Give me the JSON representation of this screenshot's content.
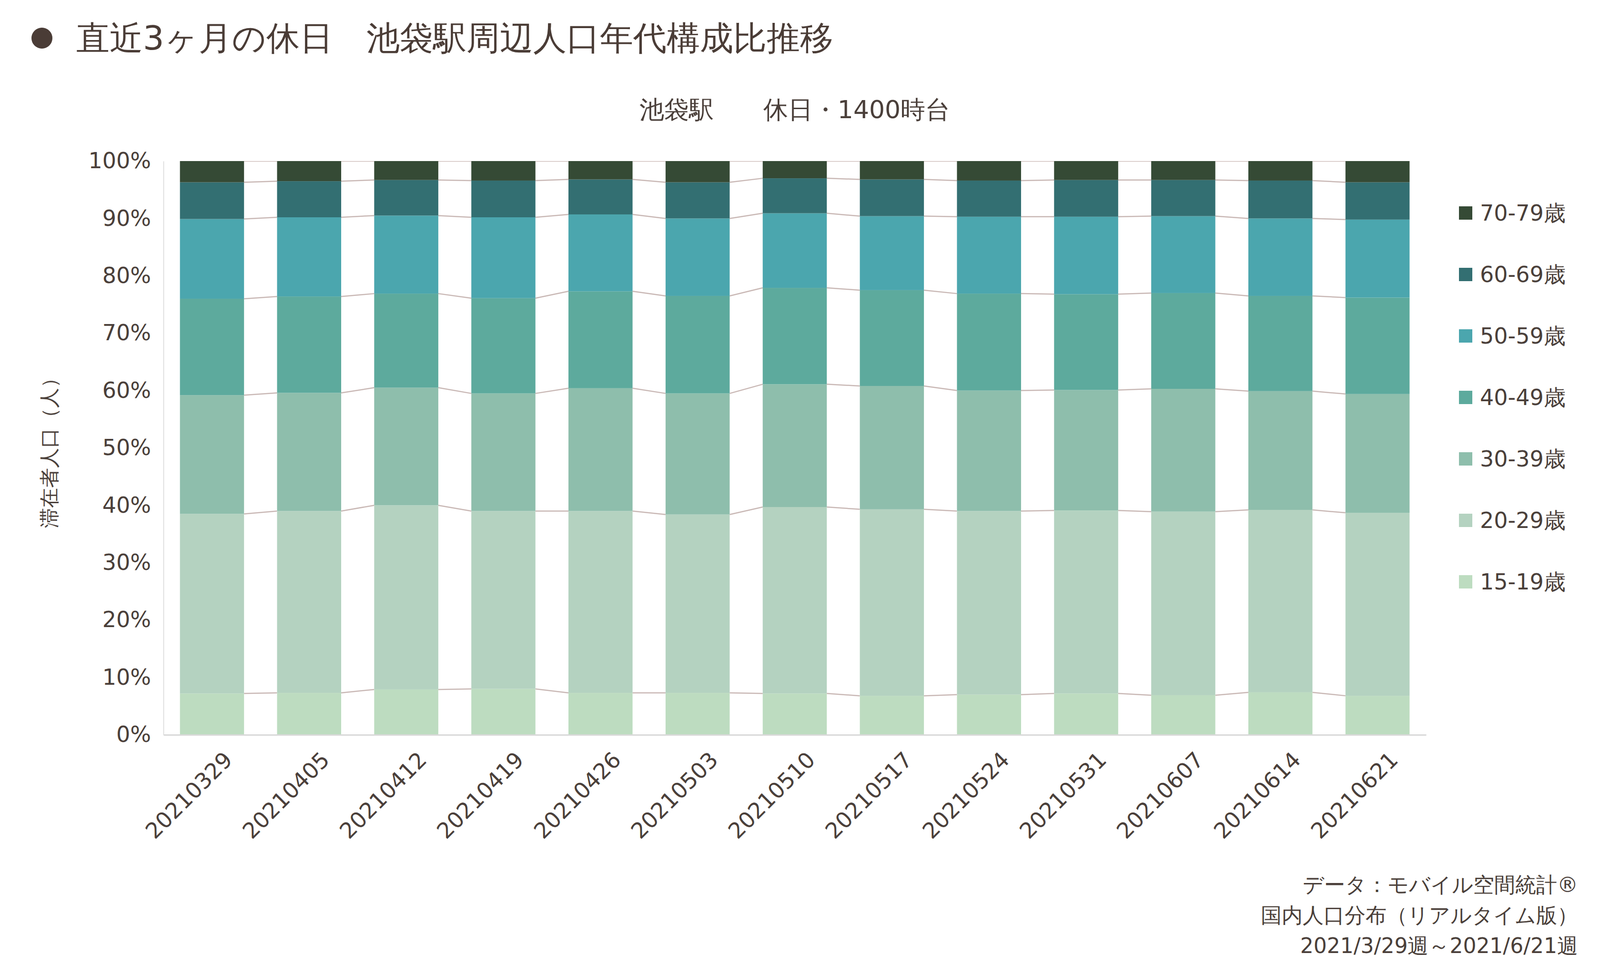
{
  "chart_data": {
    "type": "bar",
    "stacked": true,
    "title": "直近3ヶ月の休日　池袋駅周辺人口年代構成比推移",
    "subtitle": "池袋駅　　休日・1400時台",
    "y_label": "滞在者人口（人）",
    "annotations": [
      "データ：モバイル空間統計®",
      "国内人口分布（リアルタイム版）",
      "2021/3/29週～2021/6/21週"
    ],
    "categories": [
      "20210329",
      "20210405",
      "20210412",
      "20210419",
      "20210426",
      "20210503",
      "20210510",
      "20210517",
      "20210524",
      "20210531",
      "20210607",
      "20210614",
      "20210621"
    ],
    "series": [
      {
        "name": "15-19歳",
        "color": "#bddcc0",
        "values": [
          7.2,
          7.3,
          7.9,
          8.0,
          7.3,
          7.3,
          7.2,
          6.8,
          7.0,
          7.2,
          6.9,
          7.4,
          6.8
        ]
      },
      {
        "name": "20-29歳",
        "color": "#b4d2c0",
        "values": [
          31.3,
          31.7,
          32.1,
          31.0,
          31.7,
          31.1,
          32.5,
          32.5,
          32.0,
          31.9,
          32.0,
          31.8,
          31.9
        ]
      },
      {
        "name": "30-39歳",
        "color": "#8ebeac",
        "values": [
          20.7,
          20.6,
          20.5,
          20.5,
          21.4,
          21.1,
          21.4,
          21.5,
          21.0,
          21.0,
          21.4,
          20.7,
          20.7
        ]
      },
      {
        "name": "40-49歳",
        "color": "#5daa9d",
        "values": [
          16.8,
          16.8,
          16.4,
          16.6,
          16.9,
          17.0,
          16.8,
          16.7,
          16.9,
          16.7,
          16.7,
          16.6,
          16.8
        ]
      },
      {
        "name": "50-59歳",
        "color": "#4ba6ae",
        "values": [
          13.9,
          13.8,
          13.6,
          14.1,
          13.4,
          13.5,
          13.0,
          12.9,
          13.4,
          13.5,
          13.4,
          13.5,
          13.6
        ]
      },
      {
        "name": "60-69歳",
        "color": "#336f72",
        "values": [
          6.4,
          6.3,
          6.2,
          6.4,
          6.1,
          6.3,
          6.1,
          6.4,
          6.3,
          6.4,
          6.3,
          6.6,
          6.5
        ]
      },
      {
        "name": "70-79歳",
        "color": "#354a35",
        "values": [
          3.7,
          3.5,
          3.3,
          3.4,
          3.2,
          3.7,
          3.0,
          3.2,
          3.4,
          3.3,
          3.3,
          3.4,
          3.7
        ]
      }
    ],
    "ylim": [
      0,
      100
    ],
    "yticks": [
      {
        "value": 0,
        "label": "0%"
      },
      {
        "value": 10,
        "label": "10%"
      },
      {
        "value": 20,
        "label": "20%"
      },
      {
        "value": 30,
        "label": "30%"
      },
      {
        "value": 40,
        "label": "40%"
      },
      {
        "value": 50,
        "label": "50%"
      },
      {
        "value": 60,
        "label": "60%"
      },
      {
        "value": 70,
        "label": "70%"
      },
      {
        "value": 80,
        "label": "80%"
      },
      {
        "value": 90,
        "label": "90%"
      },
      {
        "value": 100,
        "label": "100%"
      }
    ],
    "grid": false,
    "legend": "right"
  }
}
